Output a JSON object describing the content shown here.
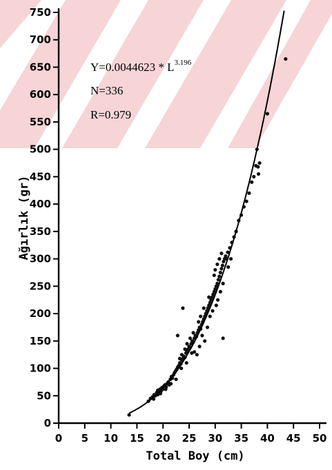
{
  "chart_data": {
    "type": "scatter",
    "xlabel": "Total Boy (cm)",
    "ylabel": "Ağırlık (gr)",
    "xlim": [
      0,
      50
    ],
    "ylim": [
      0,
      750
    ],
    "x_ticks": [
      "0",
      "5",
      "10",
      "15",
      "20",
      "25",
      "30",
      "35",
      "40",
      "45",
      "50"
    ],
    "y_ticks": [
      "0",
      "50",
      "100",
      "150",
      "200",
      "250",
      "300",
      "350",
      "400",
      "450",
      "500",
      "550",
      "600",
      "650",
      "700",
      "750"
    ],
    "annotations": {
      "equation_prefix": "Y=0.0044623 * L",
      "equation_exponent": "3.196",
      "n": "N=336",
      "r": "R=0.979"
    },
    "fit": {
      "a": 0.0044623,
      "b": 3.196,
      "x_range": [
        13.5,
        44.5
      ]
    },
    "points": [
      [
        13.5,
        15
      ],
      [
        17.2,
        40
      ],
      [
        17.6,
        45
      ],
      [
        18.0,
        48
      ],
      [
        18.3,
        52
      ],
      [
        18.5,
        50
      ],
      [
        18.8,
        56
      ],
      [
        19.0,
        60
      ],
      [
        19.2,
        55
      ],
      [
        19.4,
        62
      ],
      [
        19.6,
        58
      ],
      [
        19.8,
        65
      ],
      [
        20.0,
        62
      ],
      [
        20.2,
        68
      ],
      [
        20.4,
        70
      ],
      [
        20.6,
        66
      ],
      [
        20.8,
        72
      ],
      [
        21.0,
        75
      ],
      [
        21.2,
        70
      ],
      [
        21.4,
        80
      ],
      [
        21.6,
        85
      ],
      [
        21.8,
        82
      ],
      [
        22.0,
        88
      ],
      [
        22.2,
        92
      ],
      [
        22.4,
        95
      ],
      [
        22.6,
        98
      ],
      [
        22.8,
        102
      ],
      [
        23.0,
        105
      ],
      [
        23.2,
        110
      ],
      [
        23.4,
        108
      ],
      [
        23.6,
        115
      ],
      [
        23.8,
        118
      ],
      [
        24.0,
        122
      ],
      [
        24.2,
        120
      ],
      [
        24.4,
        128
      ],
      [
        24.6,
        132
      ],
      [
        24.8,
        135
      ],
      [
        25.0,
        140
      ],
      [
        25.2,
        138
      ],
      [
        25.4,
        145
      ],
      [
        25.6,
        150
      ],
      [
        25.8,
        148
      ],
      [
        26.0,
        155
      ],
      [
        26.2,
        160
      ],
      [
        26.4,
        158
      ],
      [
        26.6,
        165
      ],
      [
        26.8,
        170
      ],
      [
        27.0,
        175
      ],
      [
        27.2,
        172
      ],
      [
        27.4,
        180
      ],
      [
        27.6,
        185
      ],
      [
        27.8,
        190
      ],
      [
        28.0,
        195
      ],
      [
        28.2,
        200
      ],
      [
        28.4,
        205
      ],
      [
        28.6,
        210
      ],
      [
        28.8,
        215
      ],
      [
        29.0,
        220
      ],
      [
        29.2,
        225
      ],
      [
        29.4,
        230
      ],
      [
        29.6,
        235
      ],
      [
        29.8,
        240
      ],
      [
        30.0,
        245
      ],
      [
        30.2,
        250
      ],
      [
        30.4,
        255
      ],
      [
        30.6,
        262
      ],
      [
        30.8,
        268
      ],
      [
        31.0,
        275
      ],
      [
        31.2,
        282
      ],
      [
        31.4,
        288
      ],
      [
        31.6,
        295
      ],
      [
        31.8,
        300
      ],
      [
        32.0,
        305
      ],
      [
        32.4,
        312
      ],
      [
        32.8,
        320
      ],
      [
        33.2,
        330
      ],
      [
        33.6,
        340
      ],
      [
        34.0,
        350
      ],
      [
        34.5,
        370
      ],
      [
        35.0,
        380
      ],
      [
        35.5,
        395
      ],
      [
        36.0,
        405
      ],
      [
        36.5,
        420
      ],
      [
        37.0,
        440
      ],
      [
        37.4,
        450
      ],
      [
        37.8,
        470
      ],
      [
        38.2,
        468
      ],
      [
        38.5,
        475
      ],
      [
        38.3,
        455
      ],
      [
        38.0,
        500
      ],
      [
        22.8,
        160
      ],
      [
        23.8,
        210
      ],
      [
        26.5,
        125
      ],
      [
        27.0,
        140
      ],
      [
        28.5,
        175
      ],
      [
        29.0,
        195
      ],
      [
        29.5,
        205
      ],
      [
        30.2,
        215
      ],
      [
        30.5,
        225
      ],
      [
        31.0,
        240
      ],
      [
        31.5,
        255
      ],
      [
        31.5,
        155
      ],
      [
        28.0,
        150
      ],
      [
        27.5,
        160
      ],
      [
        26.0,
        130
      ],
      [
        25.5,
        128
      ],
      [
        24.5,
        110
      ],
      [
        23.5,
        100
      ],
      [
        22.5,
        80
      ],
      [
        21.5,
        72
      ],
      [
        20.5,
        62
      ],
      [
        19.5,
        54
      ],
      [
        19.0,
        52
      ],
      [
        18.2,
        44
      ],
      [
        30.0,
        280
      ],
      [
        30.8,
        300
      ],
      [
        31.2,
        310
      ],
      [
        32.2,
        300
      ],
      [
        32.5,
        285
      ],
      [
        33.0,
        300
      ],
      [
        29.8,
        270
      ],
      [
        30.4,
        290
      ],
      [
        28.8,
        230
      ],
      [
        27.8,
        210
      ],
      [
        27.2,
        195
      ],
      [
        26.8,
        185
      ],
      [
        25.8,
        165
      ],
      [
        25.2,
        155
      ],
      [
        24.6,
        145
      ],
      [
        24.2,
        135
      ],
      [
        23.6,
        125
      ],
      [
        23.2,
        118
      ],
      [
        40.0,
        565
      ],
      [
        43.5,
        665
      ]
    ]
  }
}
